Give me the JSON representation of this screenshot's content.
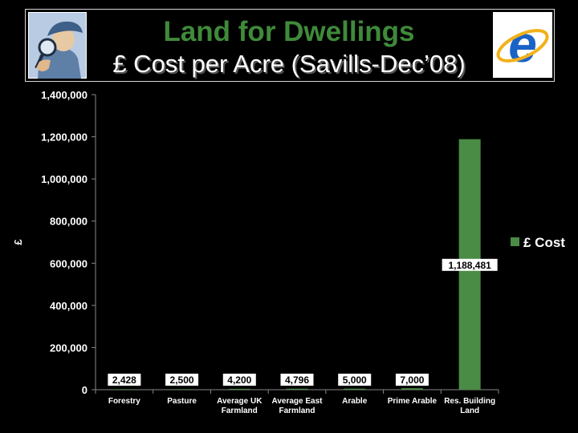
{
  "header": {
    "title": "Land for Dwellings",
    "subtitle": "£ Cost per Acre (Savills-Dec’08)",
    "left_logo_icon": "detective-magnifier-icon",
    "right_logo_icon": "internet-explorer-icon"
  },
  "colors": {
    "bar": "#4a8b45",
    "title": "#3f8a3a",
    "background": "#000000",
    "label_bg": "#ffffff"
  },
  "chart_data": {
    "type": "bar",
    "title": "£ Cost per Acre (Savills-Dec’08)",
    "xlabel": "",
    "ylabel": "£",
    "ylim": [
      0,
      1400000
    ],
    "yticks": [
      "0",
      "200,000",
      "400,000",
      "600,000",
      "800,000",
      "1,000,000",
      "1,200,000",
      "1,400,000"
    ],
    "categories": [
      [
        "Forestry"
      ],
      [
        "Pasture"
      ],
      [
        "Average UK",
        "Farmland"
      ],
      [
        "Average East",
        "Farmland"
      ],
      [
        "Arable"
      ],
      [
        "Prime Arable"
      ],
      [
        "Res. Building",
        "Land"
      ]
    ],
    "series": [
      {
        "name": "£ Cost",
        "values": [
          2428,
          2500,
          4200,
          4796,
          5000,
          7000,
          1188481
        ],
        "labels": [
          "2,428",
          "2,500",
          "4,200",
          "4,796",
          "5,000",
          "7,000",
          "1,188,481"
        ]
      }
    ],
    "legend": {
      "label": "£ Cost",
      "position": "right"
    },
    "grid": false
  }
}
